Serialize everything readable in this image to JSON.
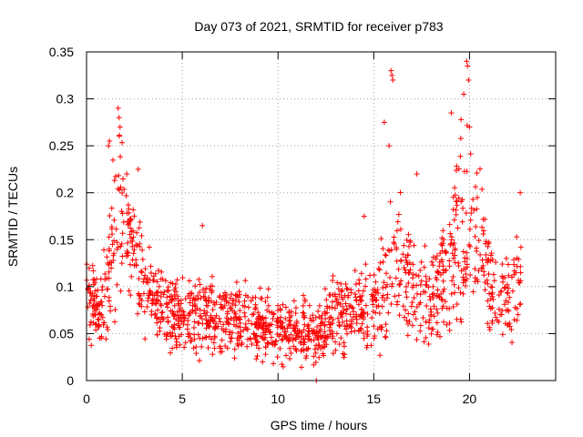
{
  "chart_data": {
    "type": "scatter",
    "title": "Day 073 of 2021, SRMTID for receiver p783",
    "xlabel": "GPS time / hours",
    "ylabel": "SRMTID / TECUs",
    "xlim": [
      0,
      24.5
    ],
    "ylim": [
      0,
      0.35
    ],
    "xticks": [
      0,
      5,
      10,
      15,
      20
    ],
    "xtick_labels": [
      "0",
      "5",
      "10",
      "15",
      "20"
    ],
    "yticks": [
      0,
      0.05,
      0.1,
      0.15,
      0.2,
      0.25,
      0.3,
      0.35
    ],
    "ytick_labels": [
      "0",
      "0.05",
      "0.1",
      "0.15",
      "0.2",
      "0.25",
      "0.3",
      "0.35"
    ],
    "grid": true,
    "marker": "+",
    "color": "#ff0000",
    "series": [
      {
        "name": "SRMTID",
        "envelope": {
          "x": [
            0,
            0.5,
            1.0,
            1.3,
            1.7,
            2.0,
            2.5,
            3.0,
            3.5,
            4.0,
            5.0,
            6.0,
            7.0,
            8.0,
            9.0,
            10.0,
            11.0,
            12.0,
            13.0,
            14.0,
            15.0,
            15.5,
            16.0,
            16.5,
            17.0,
            18.0,
            19.0,
            19.5,
            20.0,
            20.5,
            21.0,
            21.5,
            22.0,
            22.7
          ],
          "median": [
            0.09,
            0.075,
            0.08,
            0.14,
            0.17,
            0.17,
            0.13,
            0.1,
            0.09,
            0.075,
            0.07,
            0.07,
            0.068,
            0.065,
            0.062,
            0.055,
            0.05,
            0.05,
            0.065,
            0.075,
            0.08,
            0.09,
            0.12,
            0.11,
            0.1,
            0.09,
            0.12,
            0.16,
            0.17,
            0.15,
            0.11,
            0.08,
            0.09,
            0.1
          ],
          "spread": [
            0.03,
            0.02,
            0.03,
            0.06,
            0.06,
            0.04,
            0.035,
            0.03,
            0.025,
            0.025,
            0.025,
            0.025,
            0.025,
            0.022,
            0.022,
            0.02,
            0.02,
            0.02,
            0.025,
            0.025,
            0.025,
            0.04,
            0.05,
            0.04,
            0.035,
            0.03,
            0.045,
            0.06,
            0.06,
            0.045,
            0.035,
            0.025,
            0.03,
            0.03
          ]
        },
        "peaks": [
          {
            "x": 1.15,
            "y": 0.25
          },
          {
            "x": 1.2,
            "y": 0.255
          },
          {
            "x": 1.65,
            "y": 0.29
          },
          {
            "x": 1.7,
            "y": 0.28
          },
          {
            "x": 1.75,
            "y": 0.27
          },
          {
            "x": 2.1,
            "y": 0.22
          },
          {
            "x": 2.7,
            "y": 0.225
          },
          {
            "x": 6.05,
            "y": 0.165
          },
          {
            "x": 14.5,
            "y": 0.175
          },
          {
            "x": 15.55,
            "y": 0.275
          },
          {
            "x": 15.9,
            "y": 0.33
          },
          {
            "x": 15.95,
            "y": 0.325
          },
          {
            "x": 16.0,
            "y": 0.32
          },
          {
            "x": 15.8,
            "y": 0.25
          },
          {
            "x": 17.25,
            "y": 0.22
          },
          {
            "x": 19.05,
            "y": 0.285
          },
          {
            "x": 19.7,
            "y": 0.305
          },
          {
            "x": 19.85,
            "y": 0.34
          },
          {
            "x": 19.9,
            "y": 0.335
          },
          {
            "x": 19.95,
            "y": 0.32
          },
          {
            "x": 20.0,
            "y": 0.27
          },
          {
            "x": 22.65,
            "y": 0.2
          },
          {
            "x": 12.0,
            "y": 0.0
          }
        ]
      }
    ]
  }
}
